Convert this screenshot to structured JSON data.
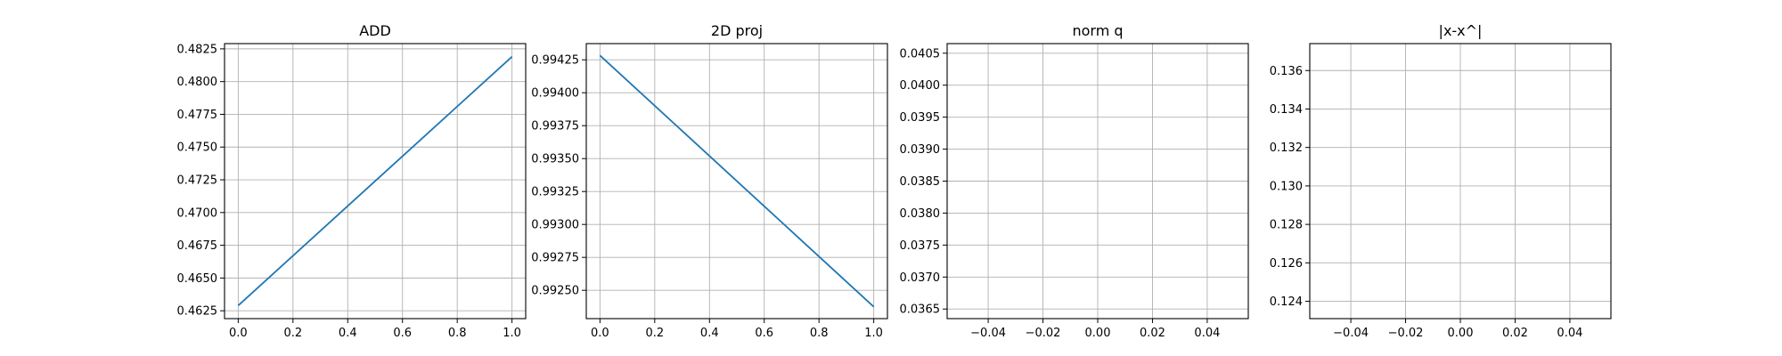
{
  "colors": {
    "series": "#1f77b4",
    "grid": "#b0b0b0"
  },
  "chart_data": [
    {
      "type": "line",
      "title": "ADD",
      "x": [
        0.0,
        1.0
      ],
      "series": [
        {
          "values": [
            0.4629,
            0.4819
          ]
        }
      ],
      "xlim": [
        -0.05,
        1.05
      ],
      "ylim": [
        0.4619,
        0.4829
      ],
      "xticks": [
        0.0,
        0.2,
        0.4,
        0.6,
        0.8,
        1.0
      ],
      "xtick_labels": [
        "0.0",
        "0.2",
        "0.4",
        "0.6",
        "0.8",
        "1.0"
      ],
      "yticks": [
        0.4625,
        0.465,
        0.4675,
        0.47,
        0.4725,
        0.475,
        0.4775,
        0.48,
        0.4825
      ],
      "ytick_labels": [
        "0.4625",
        "0.4650",
        "0.4675",
        "0.4700",
        "0.4725",
        "0.4750",
        "0.4775",
        "0.4800",
        "0.4825"
      ],
      "grid": true
    },
    {
      "type": "line",
      "title": "2D proj",
      "x": [
        0.0,
        1.0
      ],
      "series": [
        {
          "values": [
            0.994283,
            0.992375
          ]
        }
      ],
      "xlim": [
        -0.05,
        1.05
      ],
      "ylim": [
        0.992285,
        0.994373
      ],
      "xticks": [
        0.0,
        0.2,
        0.4,
        0.6,
        0.8,
        1.0
      ],
      "xtick_labels": [
        "0.0",
        "0.2",
        "0.4",
        "0.6",
        "0.8",
        "1.0"
      ],
      "yticks": [
        0.9925,
        0.99275,
        0.993,
        0.99325,
        0.9935,
        0.99375,
        0.994,
        0.99425
      ],
      "ytick_labels": [
        "0.99250",
        "0.99275",
        "0.99300",
        "0.99325",
        "0.99350",
        "0.99375",
        "0.99400",
        "0.99425"
      ],
      "grid": true
    },
    {
      "type": "line",
      "title": "norm q",
      "x": [],
      "series": [
        {
          "values": []
        }
      ],
      "xlim": [
        -0.055,
        0.055
      ],
      "ylim": [
        0.03635,
        0.04065
      ],
      "xticks": [
        -0.04,
        -0.02,
        0.0,
        0.02,
        0.04
      ],
      "xtick_labels": [
        "−0.04",
        "−0.02",
        "0.00",
        "0.02",
        "0.04"
      ],
      "yticks": [
        0.0365,
        0.037,
        0.0375,
        0.038,
        0.0385,
        0.039,
        0.0395,
        0.04,
        0.0405
      ],
      "ytick_labels": [
        "0.0365",
        "0.0370",
        "0.0375",
        "0.0380",
        "0.0385",
        "0.0390",
        "0.0395",
        "0.0400",
        "0.0405"
      ],
      "grid": true
    },
    {
      "type": "line",
      "title": "|x-x^|",
      "x": [],
      "series": [
        {
          "values": []
        }
      ],
      "xlim": [
        -0.055,
        0.055
      ],
      "ylim": [
        0.1231,
        0.1374
      ],
      "xticks": [
        -0.04,
        -0.02,
        0.0,
        0.02,
        0.04
      ],
      "xtick_labels": [
        "−0.04",
        "−0.02",
        "0.00",
        "0.02",
        "0.04"
      ],
      "yticks": [
        0.124,
        0.126,
        0.128,
        0.13,
        0.132,
        0.134,
        0.136
      ],
      "ytick_labels": [
        "0.124",
        "0.126",
        "0.128",
        "0.130",
        "0.132",
        "0.134",
        "0.136"
      ],
      "grid": true
    }
  ]
}
